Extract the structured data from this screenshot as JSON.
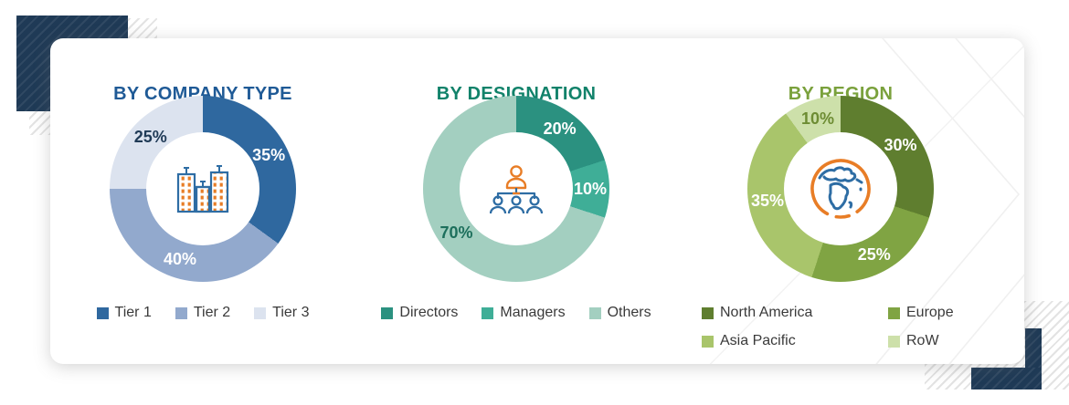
{
  "decor": {
    "navy": "#1F3A56",
    "hatch_line": "#E3E3E3",
    "card_background": "#FFFFFF",
    "watermark_line": "#F0F0F0",
    "icon_orange": "#E87D26",
    "icon_blue": "#2E6DA4"
  },
  "chart_data": [
    {
      "type": "pie",
      "subtype": "donut",
      "title": "BY COMPANY TYPE",
      "title_color": "#1F5A96",
      "center_icon": "buildings-icon",
      "legend_position": "bottom",
      "legend_columns": 3,
      "segments": [
        {
          "label": "Tier 1",
          "value": 35,
          "display": "35%",
          "color": "#2F689F",
          "pct_label_color": "#FFFFFF"
        },
        {
          "label": "Tier 2",
          "value": 40,
          "display": "40%",
          "color": "#92A9CD",
          "pct_label_color": "#FFFFFF"
        },
        {
          "label": "Tier 3",
          "value": 25,
          "display": "25%",
          "color": "#DCE3EF",
          "pct_label_color": "#1F3A56"
        }
      ]
    },
    {
      "type": "pie",
      "subtype": "donut",
      "title": "BY DESIGNATION",
      "title_color": "#11826A",
      "center_icon": "org-chart-icon",
      "legend_position": "bottom",
      "legend_columns": 3,
      "segments": [
        {
          "label": "Directors",
          "value": 20,
          "display": "20%",
          "color": "#2B9180",
          "pct_label_color": "#FFFFFF"
        },
        {
          "label": "Managers",
          "value": 10,
          "display": "10%",
          "color": "#3FAE97",
          "pct_label_color": "#FFFFFF"
        },
        {
          "label": "Others",
          "value": 70,
          "display": "70%",
          "color": "#A3CFC0",
          "pct_label_color": "#1D6F5C"
        }
      ]
    },
    {
      "type": "pie",
      "subtype": "donut",
      "title": "BY REGION",
      "title_color": "#7AA13C",
      "center_icon": "globe-icon",
      "legend_position": "bottom",
      "legend_columns": 2,
      "segments": [
        {
          "label": "North America",
          "value": 30,
          "display": "30%",
          "color": "#5F7E2F",
          "pct_label_color": "#FFFFFF"
        },
        {
          "label": "Europe",
          "value": 25,
          "display": "25%",
          "color": "#80A443",
          "pct_label_color": "#FFFFFF"
        },
        {
          "label": "Asia Pacific",
          "value": 35,
          "display": "35%",
          "color": "#A9C56B",
          "pct_label_color": "#FFFFFF"
        },
        {
          "label": "RoW",
          "value": 10,
          "display": "10%",
          "color": "#CDE0AA",
          "pct_label_color": "#6D8C33"
        }
      ]
    }
  ]
}
